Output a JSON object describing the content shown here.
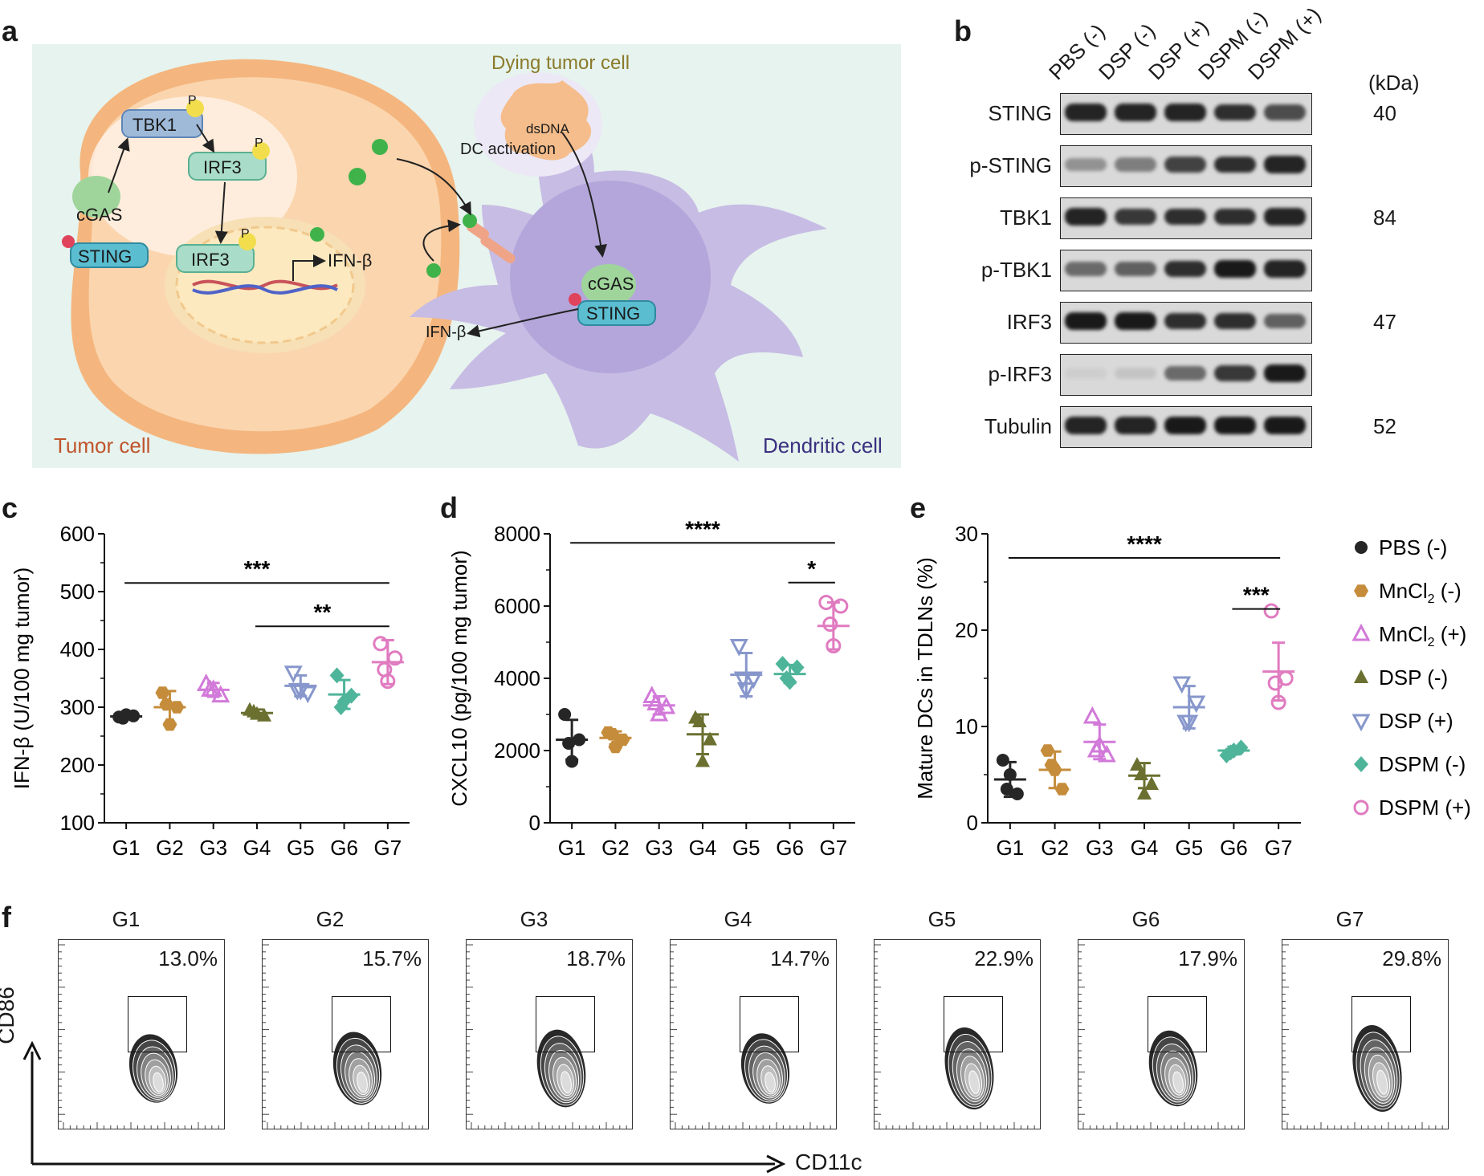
{
  "panels": {
    "a": "a",
    "b": "b",
    "c": "c",
    "d": "d",
    "e": "e",
    "f": "f"
  },
  "schematic": {
    "labels": {
      "tbk1": "TBK1",
      "irf3_cyt": "IRF3",
      "irf3_nuc": "IRF3",
      "cgas1": "cGAS",
      "sting1": "STING",
      "p1": "P",
      "p2": "P",
      "p3": "P",
      "ifnb1": "IFN-β",
      "dying": "Dying tumor cell",
      "dsdna": "dsDNA",
      "dc_activation": "DC activation",
      "cgas2": "cGAS",
      "sting2": "STING",
      "ifnb2": "IFN-β",
      "tumor_cell": "Tumor cell",
      "dendritic_cell": "Dendritic cell"
    },
    "colors": {
      "bg": "#e6f3ee",
      "tumor": "#f6c89a",
      "nucleus": "#fde7b0",
      "dc": "#c8bde6",
      "ifn": "#3fb34a"
    }
  },
  "western": {
    "lanes": [
      "PBS (-)",
      "DSP (-)",
      "DSP (+)",
      "DSPM (-)",
      "DSPM (+)"
    ],
    "kda_header": "(kDa)",
    "rows": [
      {
        "name": "STING",
        "kda": "40",
        "intensity": [
          0.9,
          0.9,
          0.9,
          0.85,
          0.7
        ]
      },
      {
        "name": "p-STING",
        "kda": "",
        "intensity": [
          0.35,
          0.45,
          0.75,
          0.85,
          0.9
        ]
      },
      {
        "name": "TBK1",
        "kda": "84",
        "intensity": [
          0.9,
          0.8,
          0.85,
          0.85,
          0.9
        ]
      },
      {
        "name": "p-TBK1",
        "kda": "",
        "intensity": [
          0.55,
          0.6,
          0.85,
          0.95,
          0.9
        ]
      },
      {
        "name": "IRF3",
        "kda": "47",
        "intensity": [
          0.95,
          0.95,
          0.85,
          0.85,
          0.6
        ]
      },
      {
        "name": "p-IRF3",
        "kda": "",
        "intensity": [
          0.05,
          0.1,
          0.55,
          0.8,
          0.95
        ]
      },
      {
        "name": "Tubulin",
        "kda": "52",
        "intensity": [
          0.9,
          0.9,
          0.95,
          0.95,
          0.95
        ]
      }
    ]
  },
  "chart_data": [
    {
      "type": "scatter",
      "panel": "c",
      "ylabel": "IFN-β (U/100 mg tumor)",
      "categories": [
        "G1",
        "G2",
        "G3",
        "G4",
        "G5",
        "G6",
        "G7"
      ],
      "ylim": [
        100,
        600
      ],
      "yticks": [
        "100",
        "200",
        "300",
        "400",
        "500",
        "600"
      ],
      "points": [
        [
          283,
          285,
          287,
          281
        ],
        [
          325,
          300,
          270,
          305
        ],
        [
          340,
          320,
          330,
          330
        ],
        [
          295,
          285,
          288,
          292
        ],
        [
          360,
          325,
          330,
          330
        ],
        [
          355,
          320,
          310,
          300
        ],
        [
          410,
          385,
          345,
          365
        ]
      ],
      "mean": [
        284,
        300,
        330,
        290,
        337,
        322,
        378
      ],
      "sd": [
        3,
        28,
        12,
        6,
        18,
        25,
        38
      ],
      "annotations": [
        {
          "text": "***",
          "from": 0,
          "to": 6,
          "y": 515
        },
        {
          "text": "**",
          "from": 3,
          "to": 6,
          "y": 440
        }
      ]
    },
    {
      "type": "scatter",
      "panel": "d",
      "ylabel": "CXCL10 (pg/100 mg tumor)",
      "categories": [
        "G1",
        "G2",
        "G3",
        "G4",
        "G5",
        "G6",
        "G7"
      ],
      "ylim": [
        0,
        8000
      ],
      "yticks": [
        "0",
        "2000",
        "4000",
        "6000",
        "8000"
      ],
      "points": [
        [
          3000,
          2300,
          1700,
          2200
        ],
        [
          2500,
          2300,
          2100,
          2450
        ],
        [
          3500,
          3200,
          3000,
          3300
        ],
        [
          2900,
          2300,
          1700,
          2800
        ],
        [
          4900,
          4000,
          3700,
          4000
        ],
        [
          4400,
          4300,
          3900,
          4000
        ],
        [
          6100,
          6000,
          4900,
          5500
        ]
      ],
      "mean": [
        2300,
        2350,
        3250,
        2450,
        4100,
        4120,
        5450
      ],
      "sd": [
        550,
        180,
        250,
        550,
        600,
        250,
        650
      ],
      "annotations": [
        {
          "text": "****",
          "from": 0,
          "to": 6,
          "y": 7750
        },
        {
          "text": "*",
          "from": 5,
          "to": 6,
          "y": 6650
        }
      ]
    },
    {
      "type": "scatter",
      "panel": "e",
      "ylabel": "Mature DCs in TDLNs (%)",
      "categories": [
        "G1",
        "G2",
        "G3",
        "G4",
        "G5",
        "G6",
        "G7"
      ],
      "ylim": [
        0,
        30
      ],
      "yticks": [
        "0",
        "10",
        "20",
        "30"
      ],
      "points": [
        [
          6.5,
          3.0,
          5.0,
          3.5
        ],
        [
          7.5,
          3.5,
          5.5,
          6.0
        ],
        [
          11.0,
          7.0,
          8.0,
          7.5
        ],
        [
          6.0,
          4.0,
          3.0,
          5.0
        ],
        [
          14.5,
          12.5,
          10.5,
          10.5
        ],
        [
          7.0,
          7.8,
          7.5,
          7.3
        ],
        [
          22.0,
          15.0,
          12.5,
          14.5
        ]
      ],
      "mean": [
        4.5,
        5.5,
        8.4,
        4.9,
        12.0,
        7.5,
        15.7
      ],
      "sd": [
        1.8,
        1.9,
        1.8,
        1.3,
        2.2,
        0.4,
        3.0
      ],
      "annotations": [
        {
          "text": "****",
          "from": 0,
          "to": 6,
          "y": 27.5
        },
        {
          "text": "***",
          "from": 5,
          "to": 6,
          "y": 22.2
        }
      ],
      "legend": [
        {
          "label": "PBS (-)",
          "marker": "circle",
          "color": "#262626"
        },
        {
          "label": "MnCl2 (-)",
          "marker": "hexagon",
          "color": "#c58c3b"
        },
        {
          "label": "MnCl2 (+)",
          "marker": "triangle-open",
          "color": "#d27ad9"
        },
        {
          "label": "DSP (-)",
          "marker": "triangle",
          "color": "#6b7030"
        },
        {
          "label": "DSP (+)",
          "marker": "triangle-down-open",
          "color": "#8797cc"
        },
        {
          "label": "DSPM (-)",
          "marker": "diamond",
          "color": "#4fb59a"
        },
        {
          "label": "DSPM (+)",
          "marker": "circle-open",
          "color": "#e07bc0"
        }
      ]
    }
  ],
  "series_colors": [
    "#262626",
    "#c58c3b",
    "#d27ad9",
    "#6b7030",
    "#8797cc",
    "#4fb59a",
    "#e07bc0"
  ],
  "flow": {
    "plots": [
      {
        "title": "G1",
        "pct": "13.0%"
      },
      {
        "title": "G2",
        "pct": "15.7%"
      },
      {
        "title": "G3",
        "pct": "18.7%"
      },
      {
        "title": "G4",
        "pct": "14.7%"
      },
      {
        "title": "G5",
        "pct": "22.9%"
      },
      {
        "title": "G6",
        "pct": "17.9%"
      },
      {
        "title": "G7",
        "pct": "29.8%"
      }
    ],
    "ylabel": "CD86",
    "xlabel": "CD11c"
  }
}
